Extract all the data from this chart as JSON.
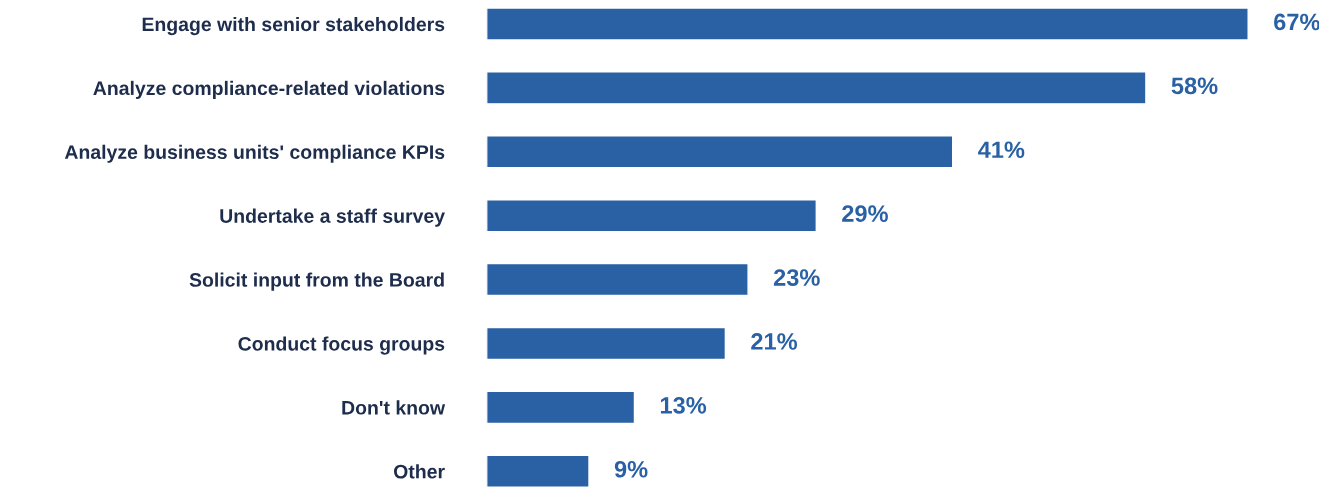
{
  "chart_data": {
    "type": "bar",
    "orientation": "horizontal",
    "categories": [
      "Engage with senior stakeholders",
      "Analyze compliance-related violations",
      "Analyze business units' compliance KPIs",
      "Undertake a staff survey",
      "Solicit input from the Board",
      "Conduct focus groups",
      "Don't know",
      "Other"
    ],
    "values": [
      67,
      58,
      41,
      29,
      23,
      21,
      13,
      9
    ],
    "value_labels": [
      "67%",
      "58%",
      "41%",
      "29%",
      "23%",
      "21%",
      "13%",
      "9%"
    ],
    "color": "#2961a4",
    "grid": false,
    "legend": false
  }
}
